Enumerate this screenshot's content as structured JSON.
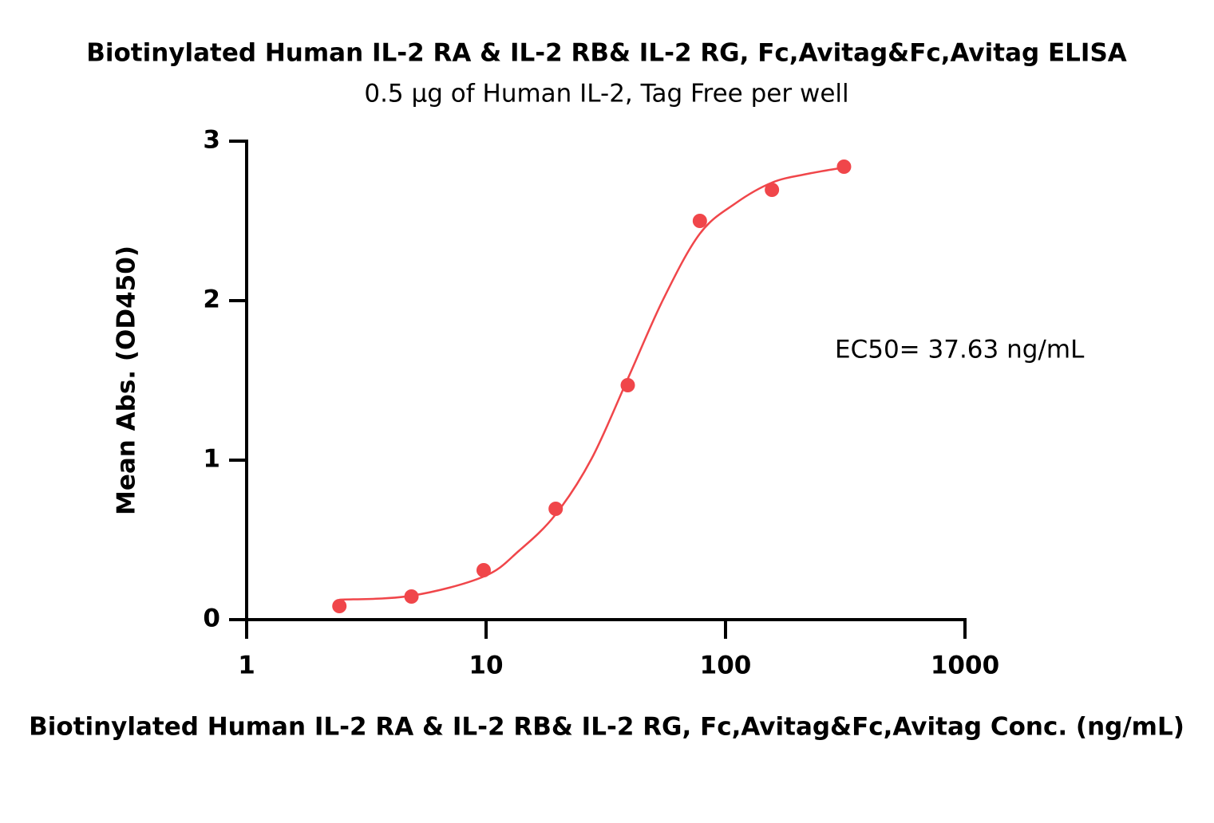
{
  "chart_data": {
    "type": "scatter",
    "title": "Biotinylated Human IL-2 RA & IL-2 RB& IL-2 RG, Fc,Avitag&Fc,Avitag ELISA",
    "subtitle": "0.5 µg of Human IL-2, Tag Free per well",
    "x_label": "Biotinylated Human IL-2 RA & IL-2 RB& IL-2 RG, Fc,Avitag&Fc,Avitag Conc. (ng/mL)",
    "y_label": "Mean Abs. (OD450)",
    "annotation": "EC50= 37.63 ng/mL",
    "x_scale": "log",
    "color": "#f0464a",
    "x": [
      2.44,
      4.88,
      9.77,
      19.53,
      39.06,
      78.13,
      156.25,
      312.5
    ],
    "values": [
      0.085,
      0.145,
      0.31,
      0.695,
      1.47,
      2.5,
      2.695,
      2.84
    ],
    "curve": {
      "x": [
        2.44,
        4.88,
        9.77,
        13.8,
        19.53,
        27.6,
        39.06,
        55,
        78.13,
        110,
        156.25,
        220,
        312.5
      ],
      "values": [
        0.125,
        0.15,
        0.27,
        0.435,
        0.66,
        1.01,
        1.51,
        2.01,
        2.42,
        2.61,
        2.74,
        2.795,
        2.835
      ]
    },
    "xlim": [
      1,
      1000
    ],
    "xticks": [
      1,
      10,
      100,
      1000
    ],
    "ylim": [
      0,
      3
    ],
    "yticks": [
      0,
      1,
      2,
      3
    ],
    "grid": false
  }
}
